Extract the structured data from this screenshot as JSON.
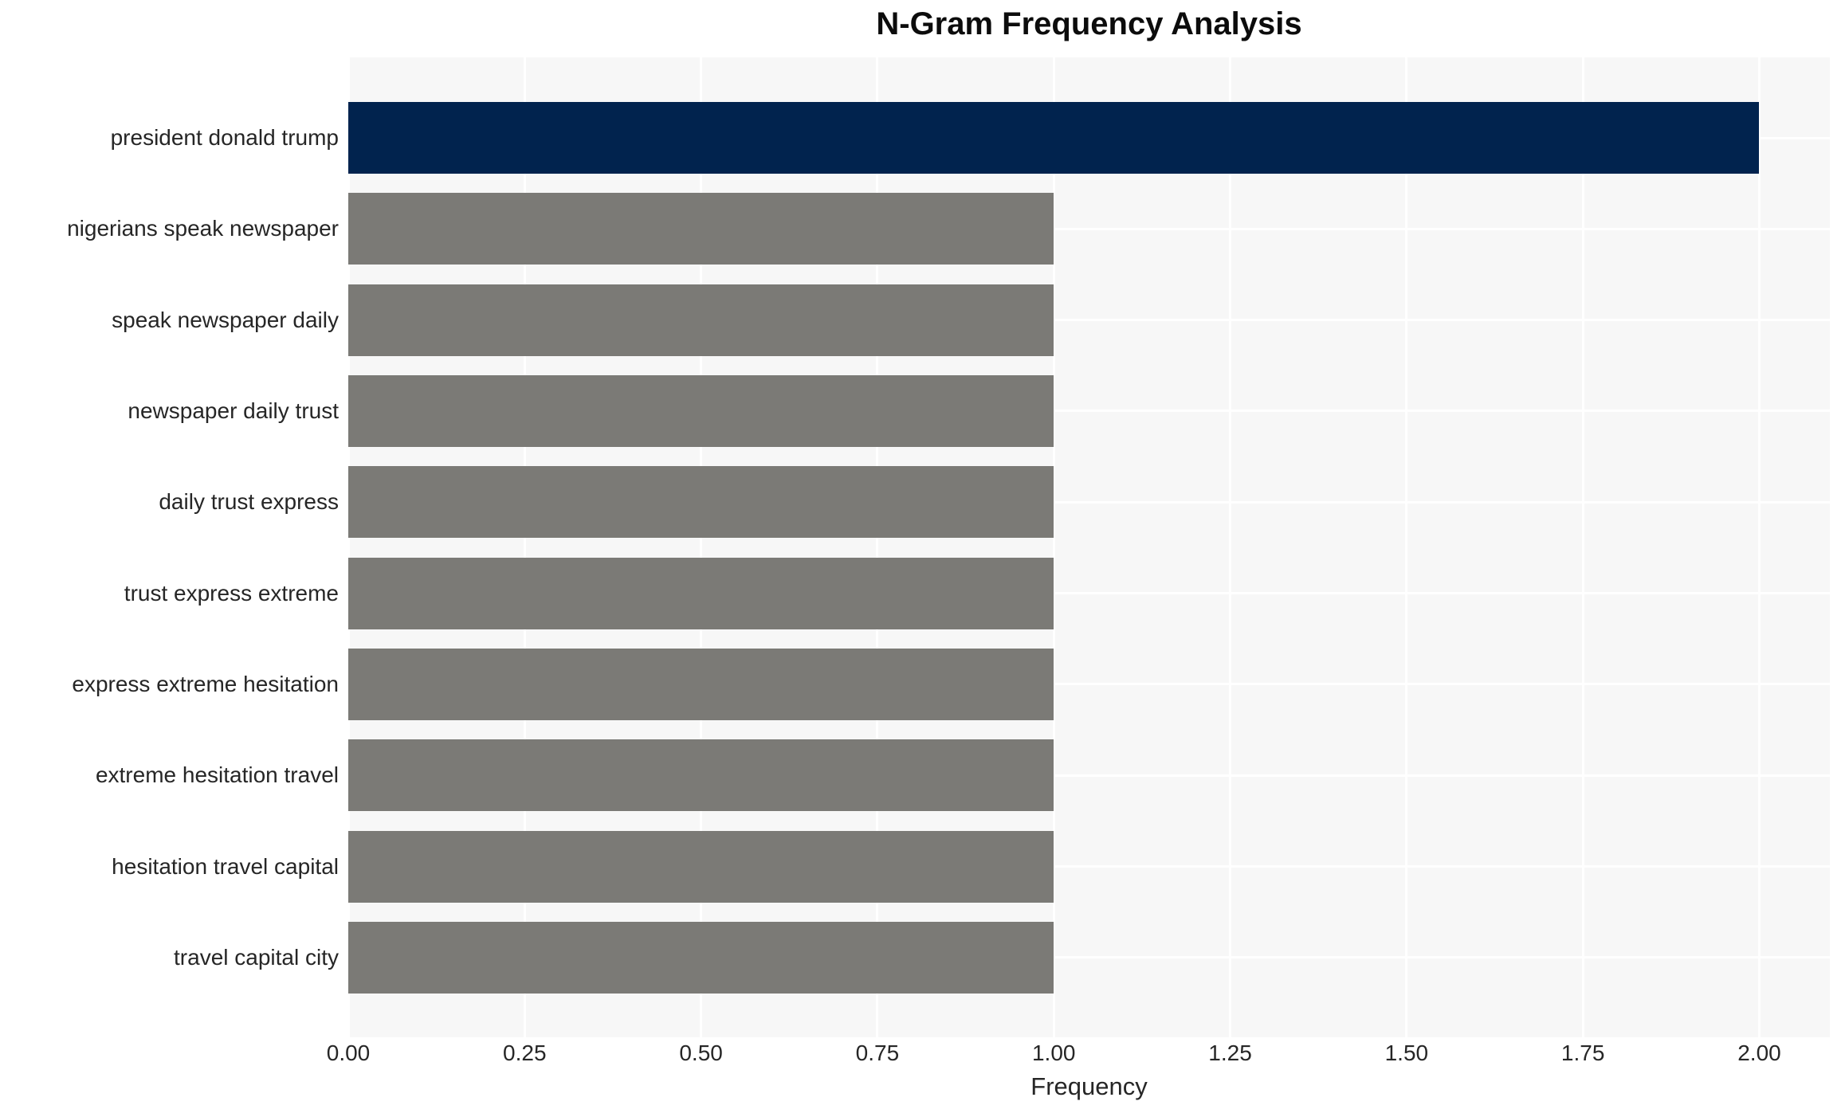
{
  "title": "N-Gram Frequency Analysis",
  "chart_data": {
    "type": "bar",
    "orientation": "horizontal",
    "title": "N-Gram Frequency Analysis",
    "xlabel": "Frequency",
    "ylabel": "",
    "categories": [
      "president donald trump",
      "nigerians speak newspaper",
      "speak newspaper daily",
      "newspaper daily trust",
      "daily trust express",
      "trust express extreme",
      "express extreme hesitation",
      "extreme hesitation travel",
      "hesitation travel capital",
      "travel capital city"
    ],
    "values": [
      2,
      1,
      1,
      1,
      1,
      1,
      1,
      1,
      1,
      1
    ],
    "bar_colors": [
      "#01234e",
      "#7b7a76",
      "#7b7a76",
      "#7b7a76",
      "#7b7a76",
      "#7b7a76",
      "#7b7a76",
      "#7b7a76",
      "#7b7a76",
      "#7b7a76"
    ],
    "xlim": [
      0,
      2.1
    ],
    "xticks": [
      0.0,
      0.25,
      0.5,
      0.75,
      1.0,
      1.25,
      1.5,
      1.75,
      2.0
    ],
    "xtick_labels": [
      "0.00",
      "0.25",
      "0.50",
      "0.75",
      "1.00",
      "1.25",
      "1.50",
      "1.75",
      "2.00"
    ],
    "grid": true,
    "legend": false,
    "colors": {
      "highlight_bar": "#01234e",
      "default_bar": "#7b7a76",
      "plot_background": "#f7f7f7",
      "gridline": "#ffffff",
      "tick_text": "#262626",
      "title_text": "#0c0c0c"
    }
  }
}
